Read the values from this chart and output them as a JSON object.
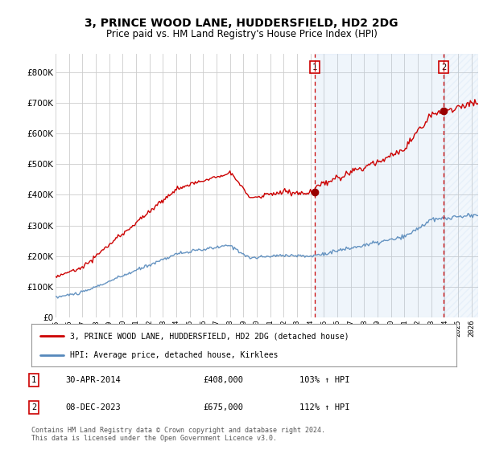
{
  "title": "3, PRINCE WOOD LANE, HUDDERSFIELD, HD2 2DG",
  "subtitle": "Price paid vs. HM Land Registry's House Price Index (HPI)",
  "title_fontsize": 10,
  "subtitle_fontsize": 8.5,
  "xlim_start": 1995.0,
  "xlim_end": 2026.5,
  "ylim_min": 0,
  "ylim_max": 860000,
  "yticks": [
    0,
    100000,
    200000,
    300000,
    400000,
    500000,
    600000,
    700000,
    800000
  ],
  "ytick_labels": [
    "£0",
    "£100K",
    "£200K",
    "£300K",
    "£400K",
    "£500K",
    "£600K",
    "£700K",
    "£800K"
  ],
  "xticks": [
    1995,
    1996,
    1997,
    1998,
    1999,
    2000,
    2001,
    2002,
    2003,
    2004,
    2005,
    2006,
    2007,
    2008,
    2009,
    2010,
    2011,
    2012,
    2013,
    2014,
    2015,
    2016,
    2017,
    2018,
    2019,
    2020,
    2021,
    2022,
    2023,
    2024,
    2025,
    2026
  ],
  "sale1_x": 2014.33,
  "sale1_y": 408000,
  "sale1_label": "1",
  "sale1_date": "30-APR-2014",
  "sale1_price": "£408,000",
  "sale1_hpi": "103% ↑ HPI",
  "sale2_x": 2023.92,
  "sale2_y": 675000,
  "sale2_label": "2",
  "sale2_date": "08-DEC-2023",
  "sale2_price": "£675,000",
  "sale2_hpi": "112% ↑ HPI",
  "line_red_color": "#cc0000",
  "line_blue_color": "#5588bb",
  "vline_color": "#cc0000",
  "point_color": "#990000",
  "grid_color": "#cccccc",
  "bg_color": "#ffffff",
  "shade_color": "#ddeeff",
  "legend_label_red": "3, PRINCE WOOD LANE, HUDDERSFIELD, HD2 2DG (detached house)",
  "legend_label_blue": "HPI: Average price, detached house, Kirklees",
  "footer_text": "Contains HM Land Registry data © Crown copyright and database right 2024.\nThis data is licensed under the Open Government Licence v3.0."
}
